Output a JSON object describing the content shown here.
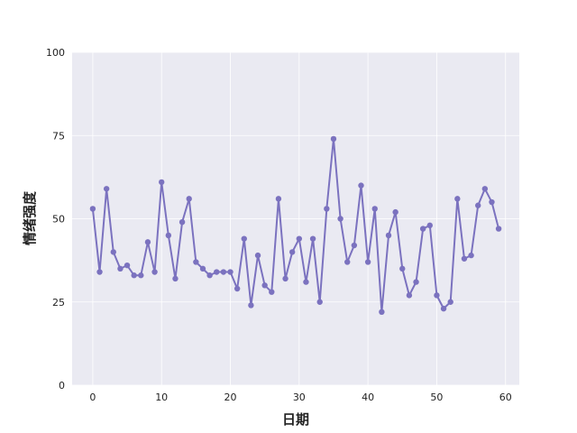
{
  "chart_data": {
    "type": "line",
    "title": "",
    "xlabel": "日期",
    "ylabel": "情绪强度",
    "xlim": [
      -3,
      62
    ],
    "ylim": [
      0,
      100
    ],
    "xticks": [
      0,
      10,
      20,
      30,
      40,
      50,
      60
    ],
    "yticks": [
      0,
      25,
      50,
      75,
      100
    ],
    "grid": true,
    "colors": {
      "line": "#7b72bf",
      "plot_bg": "#eaeaf2",
      "grid": "#ffffff"
    },
    "series": [
      {
        "x": [
          0,
          1,
          2,
          3,
          4,
          5,
          6,
          7,
          8,
          9,
          10,
          11,
          12,
          13,
          14,
          15,
          16,
          17,
          18,
          19,
          20,
          21,
          22,
          23,
          24,
          25,
          26,
          27,
          28,
          29,
          30,
          31,
          32,
          33,
          34,
          35,
          36,
          37,
          38,
          39,
          40,
          41,
          42,
          43,
          44,
          45,
          46,
          47,
          48,
          49,
          50,
          51,
          52,
          53,
          54,
          55,
          56,
          57,
          58,
          59
        ],
        "values": [
          53,
          34,
          59,
          40,
          35,
          36,
          33,
          33,
          43,
          34,
          61,
          45,
          32,
          49,
          56,
          37,
          35,
          33,
          34,
          34,
          34,
          29,
          44,
          24,
          39,
          30,
          28,
          56,
          32,
          40,
          44,
          31,
          44,
          25,
          53,
          74,
          50,
          37,
          42,
          60,
          37,
          53,
          22,
          45,
          52,
          35,
          27,
          31,
          47,
          48,
          27,
          23,
          25,
          56,
          38,
          39,
          54,
          59,
          55,
          47
        ]
      }
    ]
  }
}
